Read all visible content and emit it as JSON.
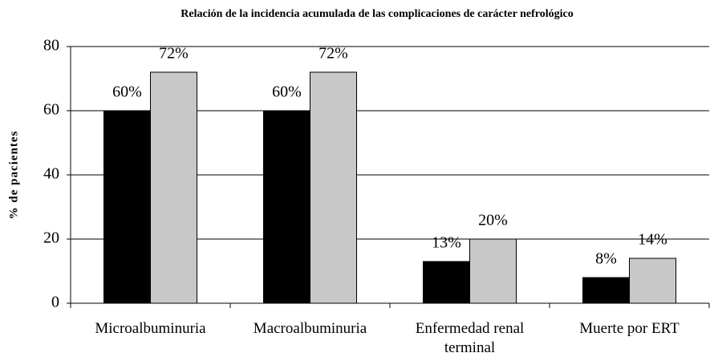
{
  "chart_data": {
    "type": "bar",
    "title": "Relación de la incidencia acumulada de las complicaciones de carácter nefrológico",
    "y_label": "% de pacientes",
    "categories": [
      "Microalbuminuria",
      "Macroalbuminuria",
      "Enfermedad renal terminal",
      "Muerte por ERT"
    ],
    "series": [
      {
        "color": "#000000",
        "values": [
          60,
          60,
          13,
          8
        ],
        "value_labels": [
          "60%",
          "60%",
          "13%",
          "8%"
        ]
      },
      {
        "color": "#c8c8c8",
        "values": [
          72,
          72,
          20,
          14
        ],
        "value_labels": [
          "72%",
          "72%",
          "20%",
          "14%"
        ]
      }
    ],
    "ylim": [
      0,
      80
    ],
    "yticks": [
      0,
      20,
      40,
      60,
      80
    ],
    "grid": true
  }
}
